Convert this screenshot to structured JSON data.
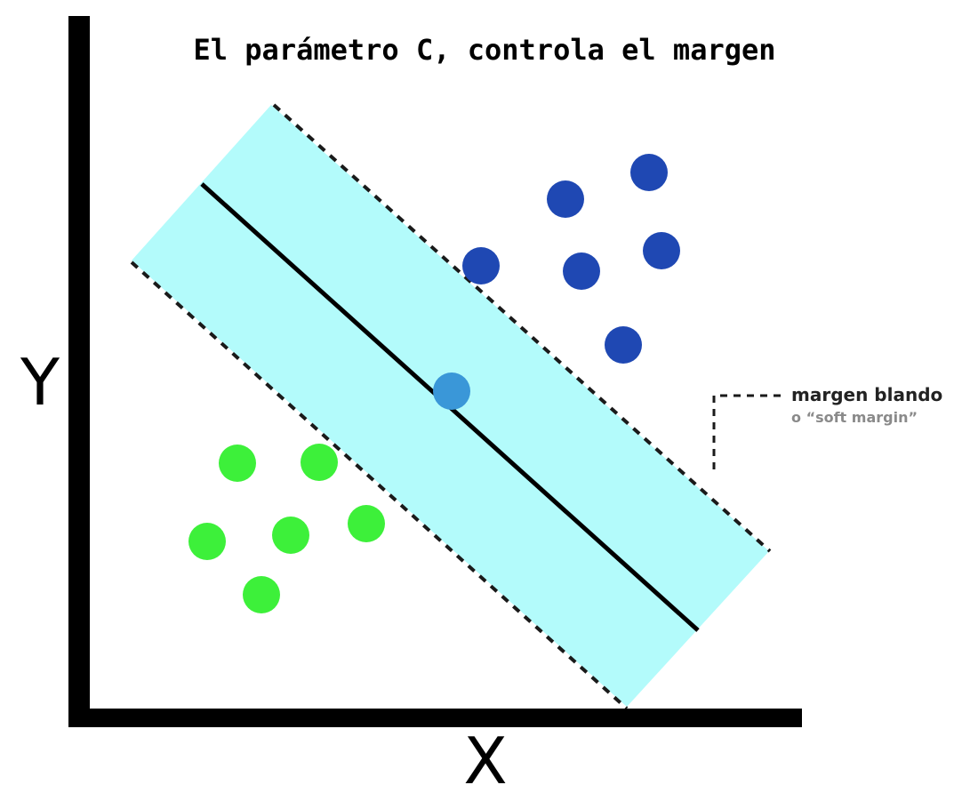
{
  "title": "El parámetro C, controla el margen",
  "axes": {
    "x_label": "X",
    "y_label": "Y"
  },
  "callout": {
    "main": "margen blando",
    "sub": "o “soft margin”"
  },
  "colors": {
    "axis": "#000000",
    "margin_band": "#b3fbfb",
    "hyperplane": "#000000",
    "margin_edge": "#1a1a1a",
    "class_blue": "#1f48b3",
    "class_green": "#3df03a",
    "misclassified_point": "#3a97d8",
    "callout_main_text": "#222222",
    "callout_sub_text": "#8a8a8a"
  },
  "points": {
    "blue_class": 6,
    "green_class": 6,
    "inside_margin": 1
  }
}
